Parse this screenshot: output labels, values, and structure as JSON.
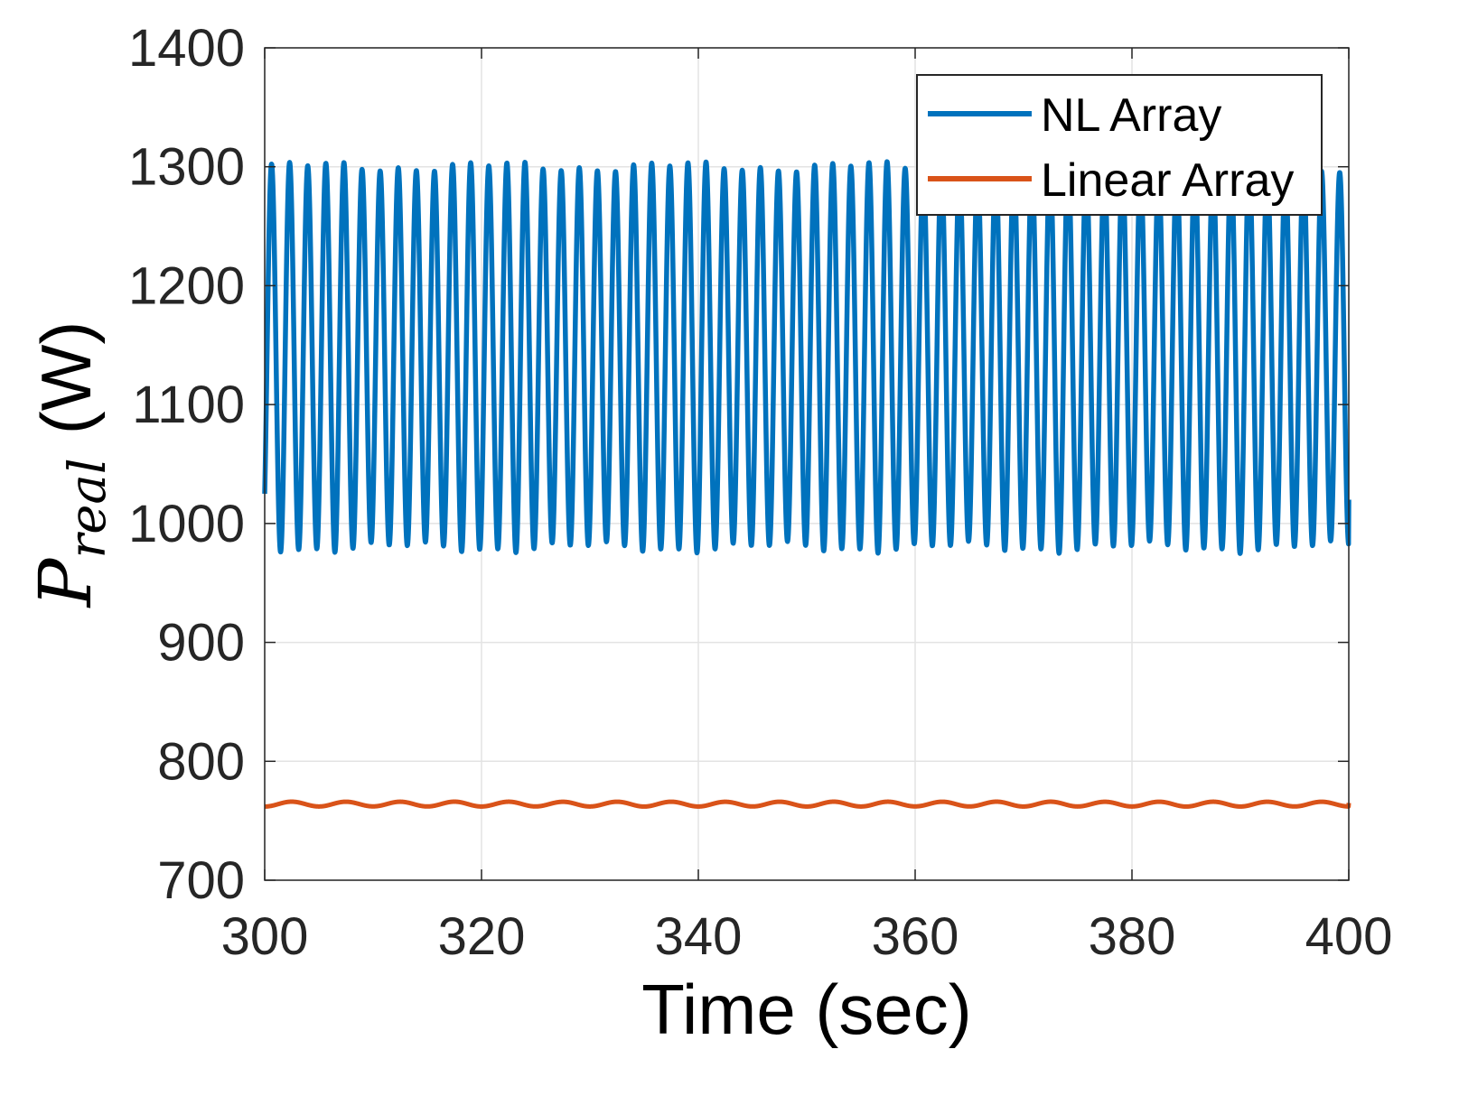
{
  "chart_data": {
    "type": "line",
    "xlabel": "Time (sec)",
    "ylabel": {
      "symbol": "P",
      "subscript": "real",
      "unit": "(W)"
    },
    "xlim": [
      300,
      400
    ],
    "ylim": [
      700,
      1400
    ],
    "xticks": [
      "300",
      "320",
      "340",
      "360",
      "380",
      "400"
    ],
    "yticks": [
      "700",
      "800",
      "900",
      "1000",
      "1100",
      "1200",
      "1300",
      "1400"
    ],
    "grid": true,
    "legend_position": "top-right",
    "series": [
      {
        "name": "NL Array",
        "color": "#0072BD",
        "mean": 1140,
        "amplitude": 160,
        "period_sec": 1.67,
        "x_start": 300,
        "x_end": 400,
        "start_value": 1025,
        "end_value": 1020
      },
      {
        "name": "Linear Array",
        "color": "#D95319",
        "mean": 764,
        "amplitude": 2,
        "period_sec": 5,
        "x_start": 300,
        "x_end": 400,
        "start_value": 762,
        "end_value": 765
      }
    ]
  }
}
